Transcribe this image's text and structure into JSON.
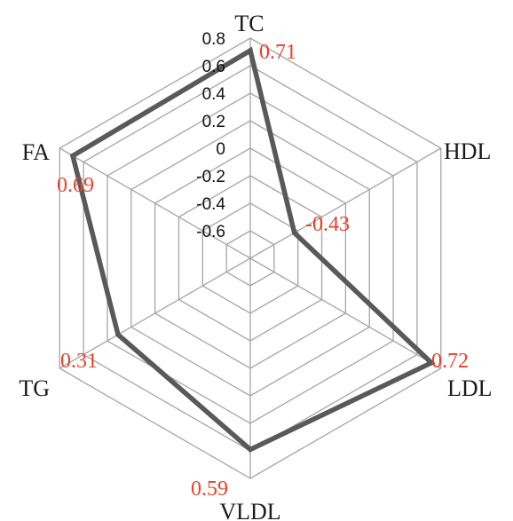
{
  "chart_data": {
    "type": "radar",
    "title": "",
    "axes": [
      "TC",
      "HDL",
      "LDL",
      "VLDL",
      "TG",
      "FA"
    ],
    "rlim": [
      -0.8,
      0.8
    ],
    "ticks": [
      "0.8",
      "0.6",
      "0.4",
      "0.2",
      "0",
      "-0.2",
      "-0.4",
      "-0.6"
    ],
    "tick_values": [
      0.8,
      0.6,
      0.4,
      0.2,
      0,
      -0.2,
      -0.4,
      -0.6
    ],
    "series": [
      {
        "values": [
          0.71,
          -0.43,
          0.72,
          0.59,
          0.31,
          0.69
        ]
      }
    ],
    "data_labels": [
      "0.71",
      "-0.43",
      "0.72",
      "0.59",
      "0.31",
      "0.69"
    ],
    "colors": {
      "grid": "#a6a6a6",
      "series": "#595959",
      "labels": "#e8412c",
      "text": "#1a1a1a"
    }
  }
}
